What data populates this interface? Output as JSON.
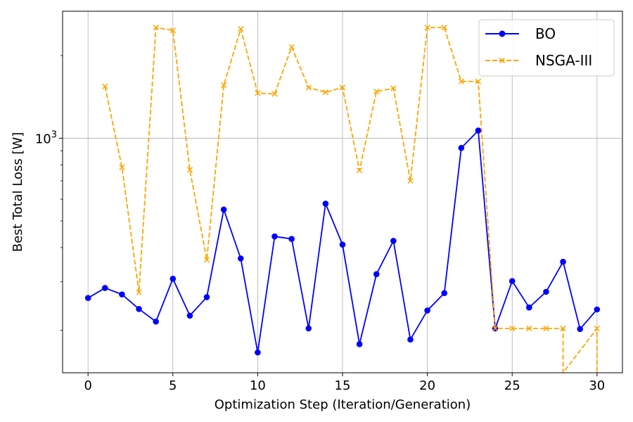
{
  "chart_data": {
    "type": "line",
    "title": "",
    "xlabel": "Optimization Step (Iteration/Generation)",
    "ylabel": "Best Total Loss [W]",
    "yscale": "log",
    "xlim": [
      -1.5,
      31.5
    ],
    "ylim": [
      140,
      2900
    ],
    "grid": true,
    "legend_position": "top-right",
    "x_ticks": [
      {
        "value": 0,
        "label": "0"
      },
      {
        "value": 5,
        "label": "5"
      },
      {
        "value": 10,
        "label": "10"
      },
      {
        "value": 15,
        "label": "15"
      },
      {
        "value": 20,
        "label": "20"
      },
      {
        "value": 25,
        "label": "25"
      },
      {
        "value": 30,
        "label": "30"
      }
    ],
    "y_ticks": [
      {
        "value": 1000,
        "base": "10",
        "exp": "3"
      }
    ],
    "y_minor_ticks": [
      200,
      300,
      400,
      500,
      600,
      700,
      800,
      900,
      2000
    ],
    "series": [
      {
        "name": "BO",
        "color": "#0000ff",
        "linestyle": "solid",
        "marker": "circle",
        "x": [
          0,
          1,
          2,
          3,
          4,
          5,
          6,
          7,
          8,
          9,
          10,
          11,
          12,
          13,
          14,
          15,
          16,
          17,
          18,
          19,
          20,
          21,
          22,
          23,
          24,
          25,
          26,
          27,
          28,
          29,
          30
        ],
        "y": [
          262,
          285,
          270,
          239,
          215,
          308,
          226,
          264,
          550,
          365,
          166,
          439,
          430,
          203,
          578,
          410,
          178,
          320,
          423,
          185,
          236,
          273,
          922,
          1067,
          203,
          302,
          242,
          276,
          355,
          202,
          238
        ]
      },
      {
        "name": "NSGA-III",
        "color": "#ffa500",
        "linestyle": "dashed",
        "marker": "x",
        "x": [
          1,
          2,
          3,
          4,
          5,
          6,
          7,
          8,
          9,
          10,
          11,
          12,
          13,
          14,
          15,
          16,
          17,
          18,
          19,
          20,
          21,
          22,
          23,
          24,
          25,
          26,
          27,
          28,
          28,
          30,
          30
        ],
        "y": [
          1544,
          784,
          275,
          2530,
          2470,
          768,
          361,
          1560,
          2500,
          1460,
          1450,
          2150,
          1530,
          1470,
          1530,
          764,
          1480,
          1520,
          700,
          2530,
          2530,
          1610,
          1610,
          203,
          203,
          203,
          203,
          203,
          140,
          203,
          140
        ]
      }
    ]
  }
}
